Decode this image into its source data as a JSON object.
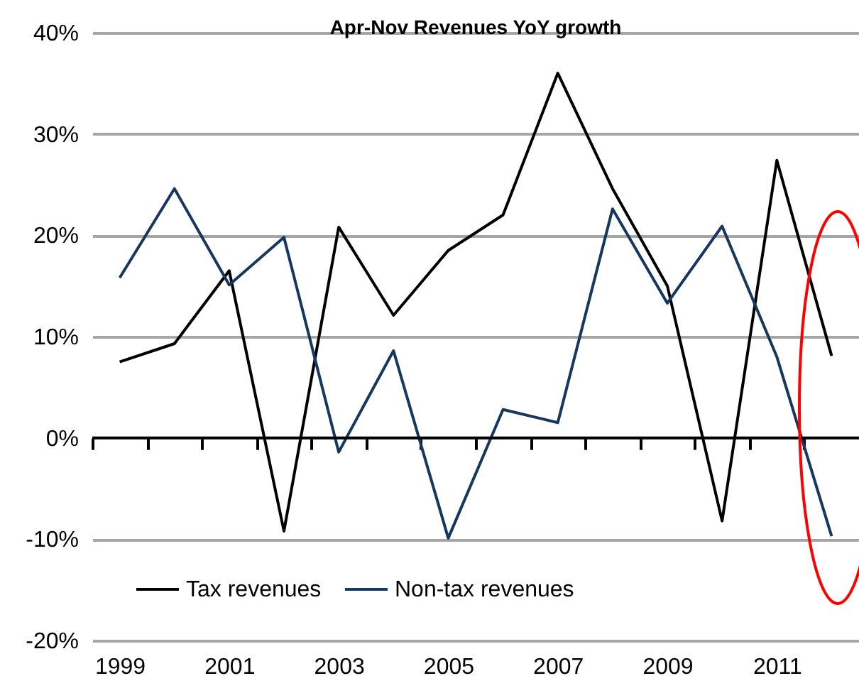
{
  "chart_data": {
    "type": "line",
    "title": "Apr-Nov Revenues YoY growth",
    "x": [
      1999,
      2000,
      2001,
      2002,
      2003,
      2004,
      2005,
      2006,
      2007,
      2008,
      2009,
      2010,
      2011,
      2012
    ],
    "series": [
      {
        "name": "Tax revenues",
        "color": "#000000",
        "values": [
          7.5,
          9.3,
          16.5,
          -9.2,
          20.8,
          12.1,
          18.5,
          22,
          36,
          24.6,
          15,
          -8.2,
          27.4,
          8.1
        ]
      },
      {
        "name": "Non-tax revenues",
        "color": "#17375e",
        "values": [
          15.8,
          24.6,
          15.1,
          19.8,
          -1.4,
          8.6,
          -9.9,
          2.8,
          1.5,
          22.6,
          13.3,
          20.9,
          8,
          -9.7
        ]
      }
    ],
    "xlim": [
      1998.5,
      2012.5
    ],
    "xticks": [
      {
        "value": 1998.5,
        "label": null
      },
      1999,
      {
        "value": 1999.5,
        "label": null
      },
      {
        "value": 2000.5,
        "label": null
      },
      2001,
      {
        "value": 2001.5,
        "label": null
      },
      {
        "value": 2002.5,
        "label": null
      },
      2003,
      {
        "value": 2003.5,
        "label": null
      },
      {
        "value": 2004.5,
        "label": null
      },
      2005,
      {
        "value": 2005.5,
        "label": null
      },
      {
        "value": 2006.5,
        "label": null
      },
      2007,
      {
        "value": 2007.5,
        "label": null
      },
      {
        "value": 2008.5,
        "label": null
      },
      2009,
      {
        "value": 2009.5,
        "label": null
      },
      {
        "value": 2010.5,
        "label": null
      },
      2011,
      {
        "value": 2011.5,
        "label": null
      }
    ],
    "ylim": [
      -20,
      40
    ],
    "yticks": [
      {
        "value": -20,
        "label": "-20%"
      },
      {
        "value": -10,
        "label": "-10%"
      },
      {
        "value": 0,
        "label": "0%"
      },
      {
        "value": 10,
        "label": "10%"
      },
      {
        "value": 20,
        "label": "20%"
      },
      {
        "value": 30,
        "label": "30%"
      },
      {
        "value": 40,
        "label": "40%"
      }
    ],
    "grid": "y",
    "legend": "bottom",
    "marker": "none",
    "line_style": "solid",
    "ref_lines": [
      {
        "axis": "y",
        "value": 0,
        "color": "#000000"
      }
    ]
  }
}
